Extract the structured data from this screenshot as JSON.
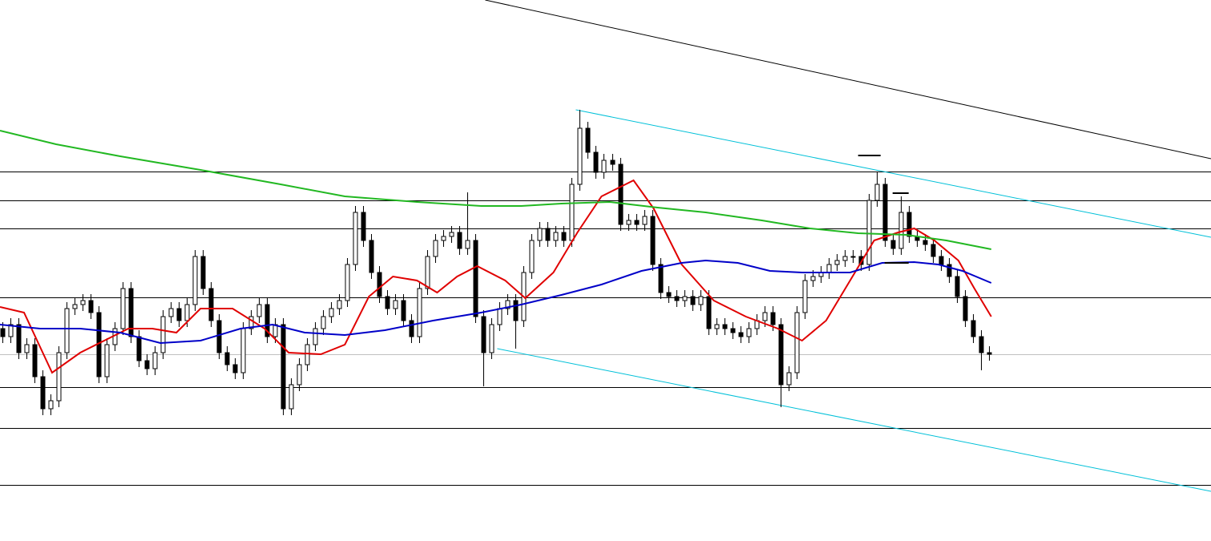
{
  "chart_data": {
    "type": "candlestick",
    "xlim": [
      0,
      151
    ],
    "ylim": [
      0,
      675
    ],
    "ohlc": [
      [
        265,
        273,
        247,
        255
      ],
      [
        255,
        278,
        247,
        270
      ],
      [
        270,
        278,
        227,
        235
      ],
      [
        235,
        253,
        227,
        245
      ],
      [
        245,
        253,
        197,
        205
      ],
      [
        205,
        213,
        157,
        165
      ],
      [
        165,
        183,
        157,
        175
      ],
      [
        175,
        243,
        167,
        235
      ],
      [
        235,
        298,
        227,
        290
      ],
      [
        290,
        303,
        282,
        295
      ],
      [
        295,
        308,
        287,
        300
      ],
      [
        300,
        308,
        277,
        285
      ],
      [
        285,
        293,
        197,
        205
      ],
      [
        205,
        253,
        197,
        245
      ],
      [
        245,
        273,
        237,
        265
      ],
      [
        265,
        323,
        257,
        315
      ],
      [
        315,
        323,
        247,
        255
      ],
      [
        255,
        263,
        217,
        225
      ],
      [
        225,
        233,
        207,
        215
      ],
      [
        215,
        243,
        207,
        235
      ],
      [
        235,
        288,
        227,
        280
      ],
      [
        280,
        298,
        272,
        290
      ],
      [
        290,
        298,
        267,
        275
      ],
      [
        275,
        303,
        267,
        295
      ],
      [
        295,
        363,
        287,
        355
      ],
      [
        355,
        363,
        307,
        315
      ],
      [
        315,
        323,
        267,
        275
      ],
      [
        275,
        283,
        227,
        235
      ],
      [
        235,
        243,
        212,
        220
      ],
      [
        220,
        228,
        202,
        210
      ],
      [
        210,
        273,
        202,
        265
      ],
      [
        265,
        288,
        257,
        280
      ],
      [
        280,
        303,
        272,
        295
      ],
      [
        295,
        303,
        247,
        255
      ],
      [
        255,
        278,
        247,
        270
      ],
      [
        270,
        278,
        157,
        165
      ],
      [
        165,
        203,
        157,
        195
      ],
      [
        195,
        228,
        187,
        220
      ],
      [
        220,
        253,
        212,
        245
      ],
      [
        245,
        273,
        237,
        265
      ],
      [
        265,
        288,
        257,
        280
      ],
      [
        280,
        298,
        272,
        290
      ],
      [
        290,
        308,
        282,
        300
      ],
      [
        300,
        353,
        292,
        345
      ],
      [
        345,
        418,
        337,
        410
      ],
      [
        410,
        418,
        367,
        375
      ],
      [
        375,
        383,
        327,
        335
      ],
      [
        335,
        343,
        297,
        305
      ],
      [
        305,
        313,
        282,
        290
      ],
      [
        290,
        308,
        282,
        300
      ],
      [
        300,
        308,
        267,
        275
      ],
      [
        275,
        283,
        247,
        255
      ],
      [
        255,
        323,
        247,
        315
      ],
      [
        315,
        363,
        307,
        355
      ],
      [
        355,
        383,
        347,
        375
      ],
      [
        375,
        388,
        367,
        380
      ],
      [
        380,
        393,
        372,
        385
      ],
      [
        385,
        393,
        357,
        365
      ],
      [
        365,
        435,
        357,
        375
      ],
      [
        375,
        383,
        272,
        280
      ],
      [
        280,
        288,
        193,
        235
      ],
      [
        235,
        278,
        227,
        270
      ],
      [
        270,
        298,
        262,
        290
      ],
      [
        290,
        308,
        282,
        300
      ],
      [
        300,
        308,
        240,
        275
      ],
      [
        275,
        343,
        267,
        335
      ],
      [
        335,
        383,
        327,
        375
      ],
      [
        375,
        398,
        367,
        390
      ],
      [
        390,
        398,
        367,
        375
      ],
      [
        375,
        393,
        367,
        385
      ],
      [
        385,
        393,
        367,
        375
      ],
      [
        375,
        453,
        367,
        445
      ],
      [
        445,
        538,
        437,
        515
      ],
      [
        515,
        523,
        477,
        485
      ],
      [
        485,
        493,
        452,
        460
      ],
      [
        460,
        483,
        452,
        475
      ],
      [
        475,
        483,
        462,
        470
      ],
      [
        470,
        478,
        387,
        395
      ],
      [
        395,
        408,
        387,
        400
      ],
      [
        400,
        408,
        387,
        395
      ],
      [
        395,
        413,
        387,
        405
      ],
      [
        405,
        413,
        337,
        345
      ],
      [
        345,
        353,
        302,
        310
      ],
      [
        310,
        318,
        297,
        305
      ],
      [
        305,
        313,
        292,
        300
      ],
      [
        300,
        313,
        292,
        305
      ],
      [
        305,
        313,
        287,
        295
      ],
      [
        295,
        313,
        287,
        305
      ],
      [
        305,
        313,
        257,
        265
      ],
      [
        265,
        278,
        257,
        270
      ],
      [
        270,
        278,
        257,
        265
      ],
      [
        265,
        273,
        252,
        260
      ],
      [
        260,
        268,
        247,
        255
      ],
      [
        255,
        273,
        247,
        265
      ],
      [
        265,
        283,
        257,
        275
      ],
      [
        275,
        293,
        267,
        285
      ],
      [
        285,
        293,
        262,
        270
      ],
      [
        270,
        278,
        167,
        195
      ],
      [
        195,
        218,
        187,
        210
      ],
      [
        210,
        293,
        202,
        285
      ],
      [
        285,
        333,
        277,
        325
      ],
      [
        325,
        338,
        317,
        330
      ],
      [
        330,
        343,
        322,
        335
      ],
      [
        335,
        353,
        327,
        345
      ],
      [
        345,
        358,
        337,
        350
      ],
      [
        350,
        363,
        342,
        355
      ],
      [
        355,
        363,
        347,
        355
      ],
      [
        355,
        363,
        337,
        345
      ],
      [
        345,
        433,
        337,
        425
      ],
      [
        425,
        461,
        417,
        445
      ],
      [
        445,
        453,
        367,
        375
      ],
      [
        375,
        383,
        357,
        365
      ],
      [
        365,
        430,
        357,
        410
      ],
      [
        410,
        418,
        372,
        380
      ],
      [
        380,
        388,
        367,
        375
      ],
      [
        375,
        383,
        362,
        370
      ],
      [
        370,
        378,
        347,
        355
      ],
      [
        355,
        363,
        337,
        345
      ],
      [
        345,
        353,
        322,
        330
      ],
      [
        330,
        338,
        297,
        305
      ],
      [
        305,
        313,
        267,
        275
      ],
      [
        275,
        283,
        247,
        255
      ],
      [
        255,
        263,
        213,
        235
      ],
      [
        235,
        243,
        225,
        233
      ]
    ],
    "up_color": "#ffffff",
    "down_color": "#000000",
    "wick_color": "#000000",
    "series": [
      {
        "color": "#e00000",
        "x": [
          0,
          3,
          6.5,
          10,
          13,
          16,
          19,
          22,
          25,
          29,
          33,
          36,
          40,
          43,
          46,
          49,
          52,
          54.5,
          57,
          59.5,
          63,
          65.5,
          69,
          72,
          75,
          79,
          81.5,
          85,
          89,
          93,
          97,
          100,
          103,
          106,
          109,
          112,
          114,
          116.5,
          119.5,
          121.5,
          123.6
        ],
        "values": [
          292,
          285,
          210,
          235,
          250,
          265,
          265,
          260,
          290,
          290,
          265,
          235,
          233,
          245,
          305,
          330,
          325,
          310,
          330,
          343,
          325,
          303,
          335,
          385,
          430,
          450,
          415,
          345,
          300,
          280,
          265,
          250,
          275,
          325,
          375,
          385,
          390,
          375,
          350,
          315,
          280
        ]
      },
      {
        "color": "#0000c8",
        "x": [
          0,
          5,
          10,
          15,
          20,
          25,
          30,
          34,
          38,
          43,
          48,
          54,
          60,
          65,
          70,
          75,
          80,
          85,
          88,
          92,
          96,
          100,
          106,
          110,
          114,
          117,
          120,
          123.6
        ],
        "values": [
          270,
          265,
          265,
          260,
          247,
          250,
          265,
          270,
          260,
          257,
          263,
          275,
          285,
          295,
          307,
          320,
          337,
          347,
          350,
          347,
          337,
          335,
          335,
          347,
          348,
          345,
          337,
          322
        ]
      },
      {
        "color": "#22b822",
        "x": [
          0,
          7,
          15,
          25,
          35,
          43,
          52,
          60,
          65,
          70,
          76,
          82,
          88,
          95,
          101,
          107,
          113,
          118,
          123.6
        ],
        "values": [
          512,
          495,
          480,
          463,
          445,
          430,
          423,
          418,
          418,
          421,
          423,
          416,
          410,
          400,
          390,
          384,
          382,
          375,
          364
        ]
      }
    ],
    "levels": [
      {
        "value": 461,
        "color": "#000000"
      },
      {
        "value": 425,
        "color": "#000000"
      },
      {
        "value": 390,
        "color": "#000000"
      },
      {
        "value": 304,
        "color": "#000000"
      },
      {
        "value": 233,
        "color": "#c0c0c0"
      },
      {
        "value": 192,
        "color": "#000000"
      },
      {
        "value": 141,
        "color": "#000000"
      },
      {
        "value": 70,
        "color": "#000000"
      }
    ],
    "trendlines": [
      {
        "color": "#000000",
        "x": [
          60.5,
          151
        ],
        "values": [
          675,
          477
        ]
      },
      {
        "color": "#00c0d8",
        "x": [
          71.8,
          151
        ],
        "values": [
          538,
          379
        ]
      },
      {
        "color": "#00c0d8",
        "x": [
          62,
          151
        ],
        "values": [
          240,
          62
        ]
      }
    ],
    "segments": [
      {
        "x": [
          107,
          109.8
        ],
        "value": 481
      },
      {
        "x": [
          111.3,
          113.3
        ],
        "value": 434
      },
      {
        "x": [
          110.3,
          113.3
        ],
        "value": 347
      }
    ]
  }
}
